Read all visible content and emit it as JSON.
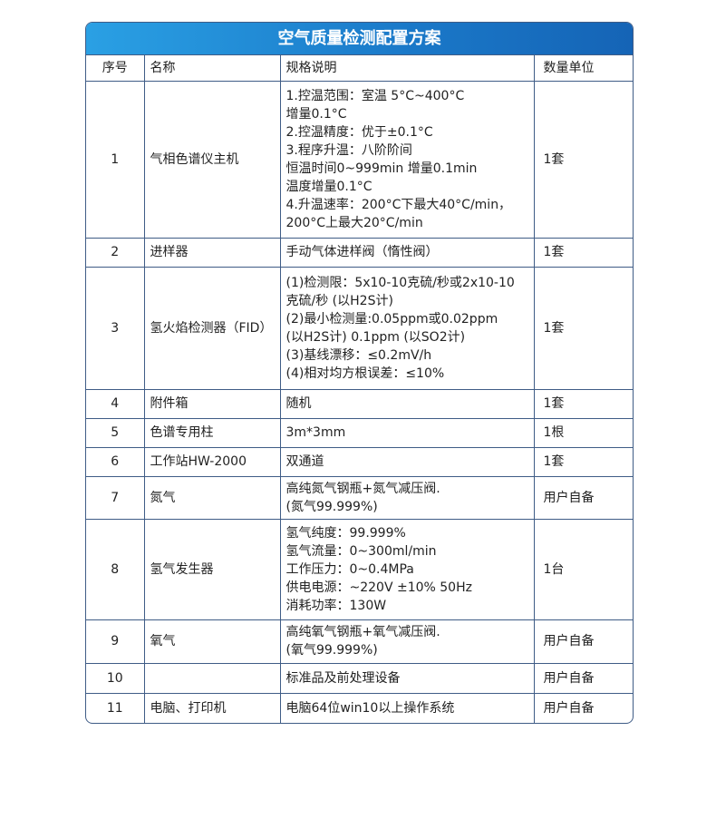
{
  "title": "空气质量检测配置方案",
  "headers": [
    "序号",
    "名称",
    "规格说明",
    "数量单位"
  ],
  "rows": [
    {
      "no": "1",
      "name": "气相色谱仪主机",
      "spec": [
        "1.控温范围：室温 5°C~400°C",
        "增量0.1°C",
        "2.控温精度：优于±0.1°C",
        "3.程序升温：八阶阶间",
        "恒温时间0~999min 增量0.1min",
        "温度增量0.1°C",
        "4.升温速率：200°C下最大40°C/min，",
        "200°C上最大20°C/min"
      ],
      "qty": "1套"
    },
    {
      "no": "2",
      "name": "进样器",
      "spec": [
        "手动气体进样阀（惰性阀）"
      ],
      "qty": "1套"
    },
    {
      "no": "3",
      "name": "氢火焰检测器（FID）",
      "spec": [
        "(1)检测限：5x10-10克硫/秒或2x10-10",
        "克硫/秒 (以H2S计)",
        "(2)最小检测量:0.05ppm或0.02ppm",
        "(以H2S计) 0.1ppm (以SO2计)",
        "(3)基线漂移：≤0.2mV/h",
        "(4)相对均方根误差：≤10%"
      ],
      "qty": "1套"
    },
    {
      "no": "4",
      "name": "附件箱",
      "spec": [
        "随机"
      ],
      "qty": "1套"
    },
    {
      "no": "5",
      "name": "色谱专用柱",
      "spec": [
        "3m*3mm"
      ],
      "qty": "1根"
    },
    {
      "no": "6",
      "name": "工作站HW-2000",
      "spec": [
        "双通道"
      ],
      "qty": "1套"
    },
    {
      "no": "7",
      "name": "氮气",
      "spec": [
        "高纯氮气钢瓶+氮气减压阀.",
        "(氮气99.999%)"
      ],
      "qty": "用户自备"
    },
    {
      "no": "8",
      "name": "氢气发生器",
      "spec": [
        "氢气纯度：99.999%",
        "氢气流量：0~300ml/min",
        "工作压力：0~0.4MPa",
        "供电电源：~220V ±10% 50Hz",
        "消耗功率：130W"
      ],
      "qty": "1台"
    },
    {
      "no": "9",
      "name": "氧气",
      "spec": [
        "高纯氧气钢瓶+氧气减压阀.",
        "(氧气99.999%)"
      ],
      "qty": "用户自备"
    },
    {
      "no": "10",
      "name": "",
      "spec": [
        "标准品及前处理设备"
      ],
      "qty": "用户自备"
    },
    {
      "no": "11",
      "name": "电脑、打印机",
      "spec": [
        "电脑64位win10以上操作系统"
      ],
      "qty": "用户自备"
    }
  ]
}
